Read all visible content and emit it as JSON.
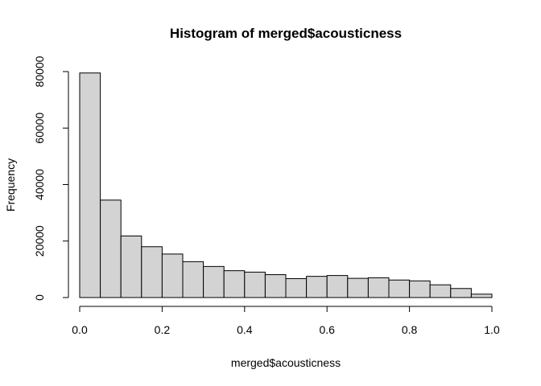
{
  "chart_data": {
    "type": "bar",
    "title": "Histogram of merged$acousticness",
    "xlabel": "merged$acousticness",
    "ylabel": "Frequency",
    "bin_edges": [
      0.0,
      0.05,
      0.1,
      0.15,
      0.2,
      0.25,
      0.3,
      0.35,
      0.4,
      0.45,
      0.5,
      0.55,
      0.6,
      0.65,
      0.7,
      0.75,
      0.8,
      0.85,
      0.9,
      0.95,
      1.0
    ],
    "values": [
      79500,
      34500,
      21800,
      18000,
      15400,
      12700,
      11000,
      9500,
      9000,
      8100,
      6700,
      7500,
      7800,
      6800,
      7000,
      6200,
      5900,
      4500,
      3200,
      1200
    ],
    "xlim": [
      0,
      1
    ],
    "ylim": [
      0,
      80000
    ],
    "xticks": [
      0.0,
      0.2,
      0.4,
      0.6,
      0.8,
      1.0
    ],
    "xtick_labels": [
      "0.0",
      "0.2",
      "0.4",
      "0.6",
      "0.8",
      "1.0"
    ],
    "yticks": [
      0,
      20000,
      40000,
      60000,
      80000
    ],
    "ytick_labels": [
      "0",
      "20000",
      "40000",
      "60000",
      "80000"
    ],
    "grid": false,
    "colors": {
      "bar_fill": "#d3d3d3",
      "bar_stroke": "#000000"
    }
  }
}
